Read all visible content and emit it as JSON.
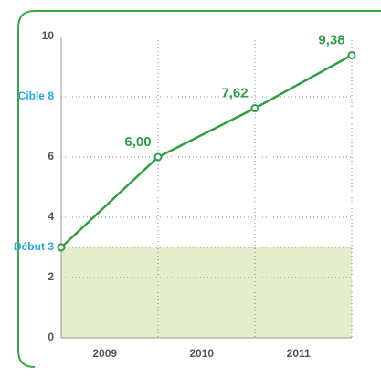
{
  "chart_data": {
    "type": "line",
    "categories": [
      "2009",
      "2010",
      "2011"
    ],
    "series": [
      {
        "color": "#2e9e45",
        "values": [
          6,
          7.62,
          9.38
        ],
        "value_labels": [
          "6,00",
          "7,62",
          "9,38"
        ]
      }
    ],
    "ylim": [
      0,
      10
    ],
    "yticks": [
      0,
      2,
      4,
      6,
      10
    ],
    "grid": true,
    "markers": [
      {
        "label": "Cible",
        "value": 8
      },
      {
        "label": "Début",
        "value": 3
      }
    ],
    "area_color": "#e3edcc",
    "marker_color": "#29a8e0"
  }
}
